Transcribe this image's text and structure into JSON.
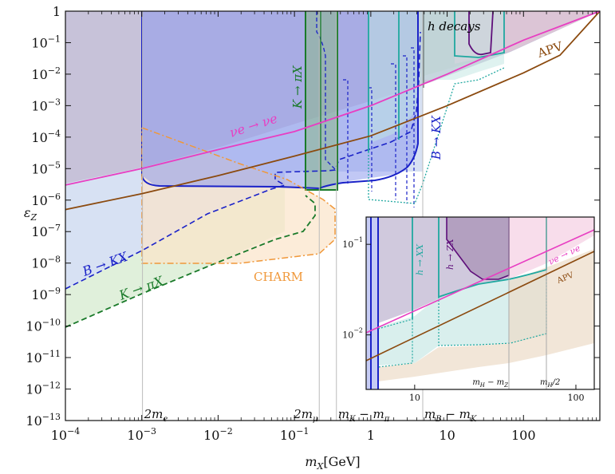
{
  "chart_data": [
    {
      "type": "area",
      "xlabel": "m_X[GeV]",
      "ylabel": "ε_Z",
      "xscale": "log",
      "yscale": "log",
      "xlim": [
        0.0001,
        1000
      ],
      "ylim": [
        1e-13,
        1
      ],
      "x_ticks": [
        {
          "v": 0.0001,
          "b": "10",
          "e": "−4"
        },
        {
          "v": 0.001,
          "b": "10",
          "e": "−3"
        },
        {
          "v": 0.01,
          "b": "10",
          "e": "−2"
        },
        {
          "v": 0.1,
          "b": "10",
          "e": "−1"
        },
        {
          "v": 1,
          "b": "1",
          "e": ""
        },
        {
          "v": 10,
          "b": "10",
          "e": ""
        },
        {
          "v": 100,
          "b": "100",
          "e": ""
        }
      ],
      "y_ticks": [
        {
          "v": 1,
          "b": "1",
          "e": ""
        },
        {
          "v": 0.1,
          "b": "10",
          "e": "−1"
        },
        {
          "v": 0.01,
          "b": "10",
          "e": "−2"
        },
        {
          "v": 0.001,
          "b": "10",
          "e": "−3"
        },
        {
          "v": 0.0001,
          "b": "10",
          "e": "−4"
        },
        {
          "v": 1e-05,
          "b": "10",
          "e": "−5"
        },
        {
          "v": 1e-06,
          "b": "10",
          "e": "−6"
        },
        {
          "v": 1e-07,
          "b": "10",
          "e": "−7"
        },
        {
          "v": 1e-08,
          "b": "10",
          "e": "−8"
        },
        {
          "v": 1e-09,
          "b": "10",
          "e": "−9"
        },
        {
          "v": 1e-10,
          "b": "10",
          "e": "−10"
        },
        {
          "v": 1e-11,
          "b": "10",
          "e": "−11"
        },
        {
          "v": 1e-12,
          "b": "10",
          "e": "−12"
        },
        {
          "v": 1e-13,
          "b": "10",
          "e": "−13"
        }
      ],
      "thresholds": [
        {
          "x": 0.001022,
          "label": "2m_e",
          "text": "2m",
          "sub": "e"
        },
        {
          "x": 0.2113,
          "label": "2m_μ",
          "text": "2m",
          "sub": "μ"
        },
        {
          "x": 0.3545,
          "label": "m_K − m_π",
          "text": "m",
          "sub": "K",
          "text2": " − m",
          "sub2": "π"
        },
        {
          "x": 4.79,
          "label": "m_B − m_K",
          "text": "m",
          "sub": "B",
          "text2": " − m",
          "sub2": "K"
        }
      ],
      "lines": [
        {
          "name": "APV",
          "color": "#8b4a0f",
          "points": [
            [
              0.0001,
              5e-07
            ],
            [
              0.001,
              1.6e-06
            ],
            [
              0.01,
              6e-06
            ],
            [
              0.1,
              2.5e-05
            ],
            [
              1,
              0.00011
            ],
            [
              10,
              0.001
            ],
            [
              100,
              0.011
            ],
            [
              300,
              0.04
            ],
            [
              1000,
              1
            ]
          ]
        },
        {
          "name": "νe → νe",
          "color": "#e83ec2",
          "points": [
            [
              0.0001,
              3e-06
            ],
            [
              0.001,
              1e-05
            ],
            [
              0.01,
              4e-05
            ],
            [
              0.1,
              0.00015
            ],
            [
              1,
              0.001
            ],
            [
              10,
              0.01
            ],
            [
              100,
              0.12
            ],
            [
              1000,
              1
            ]
          ]
        }
      ],
      "regions": [
        {
          "name": "B → KX",
          "color": "#1a22c8",
          "style": "solid",
          "points": [
            [
              0.00102,
              1
            ],
            [
              0.00102,
              1.5e-05
            ],
            [
              0.0012,
              2.5e-06
            ],
            [
              0.2,
              2.1e-06
            ],
            [
              0.6,
              3e-06
            ],
            [
              2,
              6e-06
            ],
            [
              4,
              2e-05
            ],
            [
              4.4,
              1
            ],
            [
              0.00102,
              1
            ]
          ]
        },
        {
          "name": "B → KX (dashed)",
          "color": "#1a22c8",
          "style": "dashed",
          "points": [
            [
              0.00102,
              1.5e-08
            ],
            [
              0.01,
              2e-07
            ],
            [
              0.07,
              1.5e-06
            ],
            [
              0.08,
              1.7e-06
            ],
            [
              0.09,
              8e-06
            ],
            [
              1,
              1.5e-05
            ],
            [
              3,
              5e-05
            ],
            [
              4.7,
              0.0001
            ],
            [
              4.7,
              0.3
            ],
            [
              0.3,
              0.3
            ],
            [
              0.3,
              1
            ]
          ]
        },
        {
          "name": "K → πX",
          "color": "#1a7a2a",
          "style": "solid",
          "points": [
            [
              0.13,
              1
            ],
            [
              0.13,
              2.2e-06
            ],
            [
              0.35,
              2.2e-06
            ],
            [
              0.35,
              1
            ]
          ]
        },
        {
          "name": "K → πX (dashed)",
          "color": "#1a7a2a",
          "style": "dashed",
          "points": [
            [
              0.0001,
              1e-10
            ],
            [
              0.001,
              1e-09
            ],
            [
              0.01,
              1e-08
            ],
            [
              0.1,
              5e-08
            ],
            [
              0.2,
              1.5e-07
            ],
            [
              0.3,
              3e-07
            ]
          ]
        },
        {
          "name": "CHARM",
          "color": "#f0983a",
          "style": "dashdot",
          "points": [
            [
              0.00102,
              0.0002
            ],
            [
              0.05,
              2e-05
            ],
            [
              0.2,
              1.5e-06
            ],
            [
              0.3,
              3e-07
            ],
            [
              0.2,
              5e-08
            ],
            [
              0.07,
              2e-08
            ],
            [
              0.00102,
              2e-08
            ]
          ]
        },
        {
          "name": "h → ZX",
          "color": "#5e0e7a",
          "style": "solid",
          "points": [
            [
              12,
              1
            ],
            [
              12,
              0.2
            ],
            [
              20,
              0.08
            ],
            [
              30,
              0.06
            ],
            [
              40,
              0.06
            ],
            [
              40,
              1
            ]
          ]
        },
        {
          "name": "h → XX",
          "color": "#20a8a0",
          "style": "solid",
          "points": [
            [
              2.3,
              1
            ],
            [
              2.3,
              0.03
            ],
            [
              6,
              0.02
            ],
            [
              10,
              0.03
            ],
            [
              20,
              0.05
            ],
            [
              40,
              0.06
            ],
            [
              62.5,
              0.08
            ],
            [
              62.5,
              1
            ]
          ]
        },
        {
          "name": "h decays",
          "color": "#607070",
          "style": "solid",
          "points": [
            [
              4.7,
              1
            ],
            [
              4.7,
              0.01
            ],
            [
              62.5,
              0.05
            ],
            [
              62.5,
              1
            ]
          ]
        }
      ],
      "labels": [
        {
          "text": "h decays",
          "x": 18,
          "y": 0.5,
          "color": "#000000",
          "rotate": 0
        },
        {
          "text": "APV",
          "x": 250,
          "y": 0.04,
          "color": "#8b4a0f",
          "rotate": -18
        },
        {
          "text": "νe → νe",
          "x": 0.08,
          "y": 0.00015,
          "color": "#e83ec2",
          "rotate": -18
        },
        {
          "text": "K → πX",
          "x": 0.13,
          "y": 0.01,
          "color": "#1a7a2a",
          "rotate": -90
        },
        {
          "text": "B → KX",
          "x": 4.8,
          "y": 0.0001,
          "color": "#1a22c8",
          "rotate": -90
        },
        {
          "text": "B → KX",
          "x": 0.0001,
          "y": 3e-08,
          "color": "#1a22c8",
          "rotate": -20
        },
        {
          "text": "K → πX",
          "x": 0.0002,
          "y": 1e-09,
          "color": "#1a7a2a",
          "rotate": -20
        },
        {
          "text": "CHARM",
          "x": 0.05,
          "y": 1e-08,
          "color": "#f0983a",
          "rotate": 0
        }
      ]
    },
    {
      "type": "area",
      "inset": true,
      "xscale": "log",
      "yscale": "log",
      "xlim": [
        5,
        130
      ],
      "ylim": [
        0.0025,
        0.2
      ],
      "x_ticks": [
        {
          "v": 10,
          "label": "10"
        },
        {
          "v": 100,
          "label": "100"
        }
      ],
      "y_ticks": [
        {
          "v": 0.1,
          "b": "10",
          "e": "−1"
        },
        {
          "v": 0.01,
          "b": "10",
          "e": "−2"
        }
      ],
      "thresholds": [
        {
          "x": 34.4,
          "label": "m_H − m_Z",
          "text": "m",
          "sub": "H",
          "text2": " − m",
          "sub2": "Z"
        },
        {
          "x": 62.5,
          "label": "m_H/2",
          "text": "m",
          "sub": "H",
          "text2": "/2",
          "sub2": ""
        }
      ],
      "labels": [
        {
          "text": "h → XX",
          "color": "#20a8a0"
        },
        {
          "text": "h → ZX",
          "color": "#5e0e7a"
        },
        {
          "text": "νe → νe",
          "color": "#e83ec2"
        },
        {
          "text": "APV",
          "color": "#8b4a0f"
        }
      ]
    }
  ]
}
